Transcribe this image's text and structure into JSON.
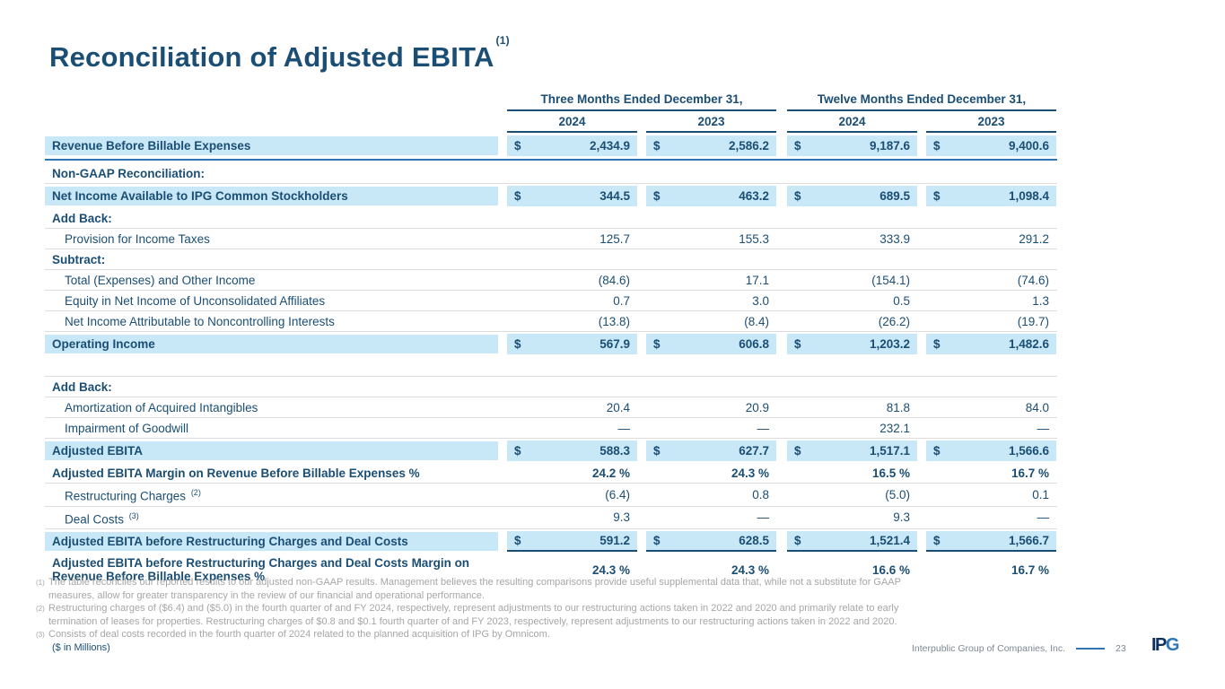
{
  "slide": {
    "title": "Reconciliation of Adjusted EBITA",
    "title_superscript": "(1)"
  },
  "table": {
    "col_groups": [
      {
        "label": "Three Months Ended December 31,"
      },
      {
        "label": "Twelve Months Ended December 31,"
      }
    ],
    "year_headers": [
      "2024",
      "2023",
      "2024",
      "2023"
    ],
    "rows": [
      {
        "label": "Revenue Before Billable Expenses",
        "style": "highlight",
        "rule_blue": true,
        "dollar": true,
        "values": [
          "2,434.9",
          "2,586.2",
          "9,187.6",
          "9,400.6"
        ]
      },
      {
        "label": "Non-GAAP Reconciliation:",
        "style": "section"
      },
      {
        "label": "Net Income Available to IPG Common Stockholders",
        "style": "highlight",
        "dollar": true,
        "values": [
          "344.5",
          "463.2",
          "689.5",
          "1,098.4"
        ]
      },
      {
        "label": "Add Back:",
        "style": "section"
      },
      {
        "label": "Provision for Income Taxes",
        "style": "data",
        "values": [
          "125.7",
          "155.3",
          "333.9",
          "291.2"
        ]
      },
      {
        "label": "Subtract:",
        "style": "section"
      },
      {
        "label": "Total (Expenses) and Other Income",
        "style": "data",
        "values": [
          "(84.6)",
          "17.1",
          "(154.1)",
          "(74.6)"
        ]
      },
      {
        "label": "Equity in Net Income of Unconsolidated Affiliates",
        "style": "data",
        "values": [
          "0.7",
          "3.0",
          "0.5",
          "1.3"
        ]
      },
      {
        "label": "Net Income Attributable to Noncontrolling Interests",
        "style": "data",
        "values": [
          "(13.8)",
          "(8.4)",
          "(26.2)",
          "(19.7)"
        ]
      },
      {
        "label": "Operating Income",
        "style": "highlight",
        "dollar": true,
        "values": [
          "567.9",
          "606.8",
          "1,203.2",
          "1,482.6"
        ]
      },
      {
        "label": "",
        "style": "spacer"
      },
      {
        "label": "Add Back:",
        "style": "section"
      },
      {
        "label": "Amortization of Acquired Intangibles",
        "style": "data",
        "values": [
          "20.4",
          "20.9",
          "81.8",
          "84.0"
        ]
      },
      {
        "label": "Impairment of Goodwill",
        "style": "data",
        "values": [
          "—",
          "—",
          "232.1",
          "—"
        ]
      },
      {
        "label": "Adjusted EBITA",
        "style": "highlight",
        "dollar": true,
        "values": [
          "588.3",
          "627.7",
          "1,517.1",
          "1,566.6"
        ]
      },
      {
        "label": "Adjusted EBITA Margin on Revenue Before Billable Expenses %",
        "style": "margin",
        "values": [
          "24.2 %",
          "24.3 %",
          "16.5 %",
          "16.7 %"
        ]
      },
      {
        "label": "Restructuring Charges",
        "sup": "(2)",
        "style": "data",
        "values": [
          "(6.4)",
          "0.8",
          "(5.0)",
          "0.1"
        ]
      },
      {
        "label": "Deal Costs",
        "sup": "(3)",
        "style": "data",
        "values": [
          "9.3",
          "—",
          "9.3",
          "—"
        ]
      },
      {
        "label": "Adjusted EBITA before Restructuring Charges and Deal Costs",
        "style": "highlight-final",
        "dollar": true,
        "values": [
          "591.2",
          "628.5",
          "1,521.4",
          "1,566.7"
        ]
      },
      {
        "label": "Adjusted EBITA before Restructuring Charges and Deal Costs Margin on Revenue Before Billable Expenses %",
        "style": "margin",
        "last": true,
        "values": [
          "24.3 %",
          "24.3 %",
          "16.6 %",
          "16.7 %"
        ]
      }
    ]
  },
  "footnotes": [
    {
      "sup": "(1)",
      "lines": [
        "The table reconciles our reported results to our adjusted non-GAAP results. Management believes the resulting comparisons provide useful supplemental data that, while not a substitute for GAAP",
        "measures, allow for greater transparency in the review of our financial and operational performance."
      ]
    },
    {
      "sup": "(2)",
      "lines": [
        "Restructuring charges of ($6.4) and ($5.0) in the fourth quarter of and FY 2024, respectively, represent adjustments to our restructuring actions taken in 2022 and 2020 and primarily relate to early",
        "termination of leases for properties. Restructuring charges of $0.8 and $0.1 fourth quarter of and FY 2023, respectively, represent adjustments to our restructuring actions taken in 2022 and 2020."
      ]
    },
    {
      "sup": "(3)",
      "lines": [
        "Consists of deal costs recorded in the fourth quarter of 2024 related to the planned acquisition of IPG by Omnicom."
      ]
    }
  ],
  "footer": {
    "scale_note": "($ in Millions)",
    "company": "Interpublic Group of Companies, Inc.",
    "page_number": "23",
    "logo_dark": "IP",
    "logo_accent": "G"
  }
}
